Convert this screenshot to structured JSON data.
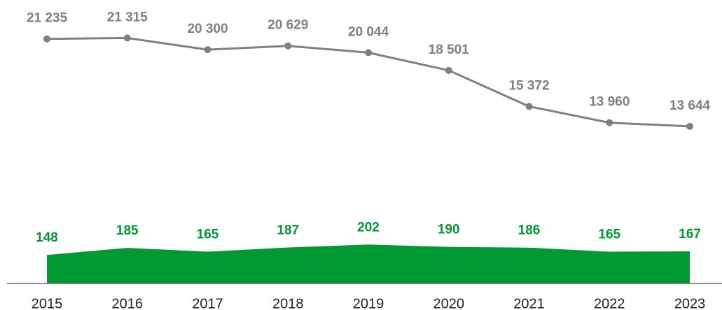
{
  "chart_data": {
    "type": "line",
    "categories": [
      "2015",
      "2016",
      "2017",
      "2018",
      "2019",
      "2020",
      "2021",
      "2022",
      "2023"
    ],
    "series": [
      {
        "name": null,
        "type": "line",
        "color": "#808080",
        "values": [
          21235,
          21315,
          20300,
          20629,
          20044,
          18501,
          15372,
          13960,
          13644
        ],
        "value_labels": [
          "21 235",
          "21 315",
          "20 300",
          "20 629",
          "20 044",
          "18 501",
          "15 372",
          "13 960",
          "13 644"
        ]
      },
      {
        "name": null,
        "type": "area",
        "color": "#009933",
        "axis": "y2",
        "values": [
          148,
          185,
          165,
          187,
          202,
          190,
          186,
          165,
          167
        ]
      }
    ],
    "ylim": [
      0,
      23400
    ],
    "y2lim": [
      0,
      1400
    ]
  }
}
